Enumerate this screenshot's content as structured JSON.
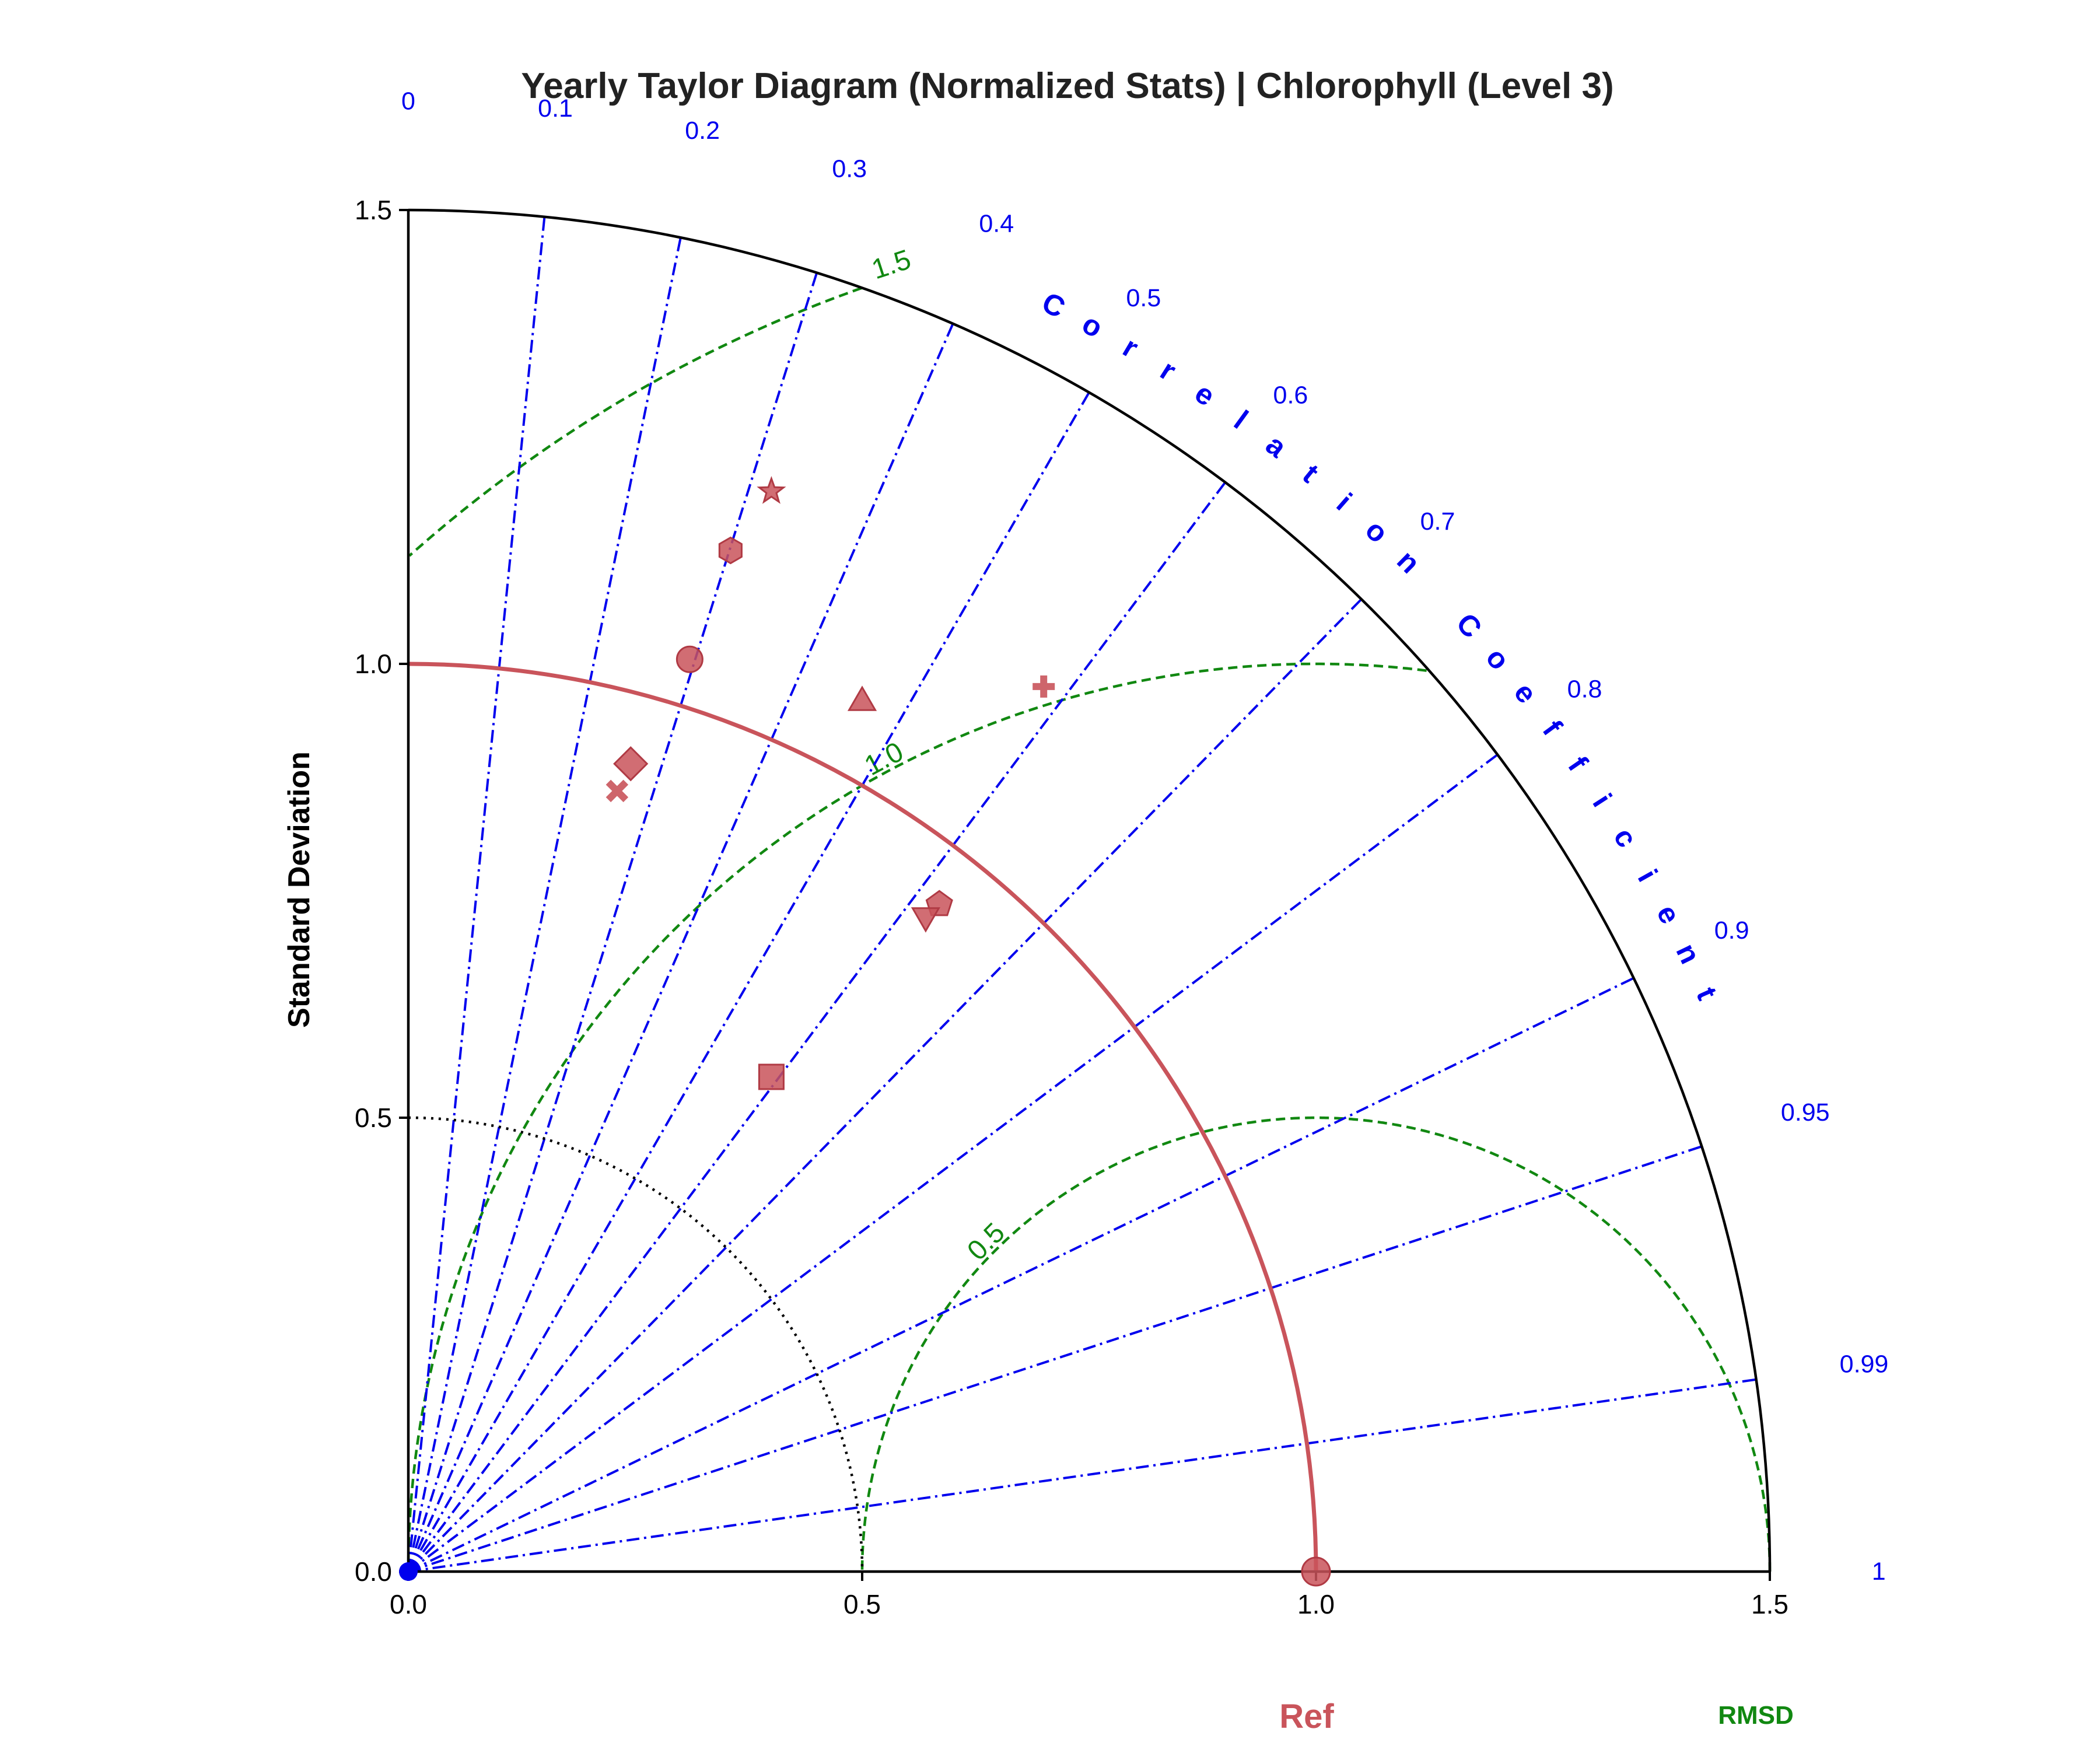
{
  "chart_data": {
    "type": "taylor",
    "title": "Yearly Taylor Diagram (Normalized Stats) | Chlorophyll (Level 3)",
    "ylabel": "Standard Deviation",
    "std_range": [
      0,
      1.5
    ],
    "std_ticks": [
      "0.0",
      "0.5",
      "1.0",
      "1.5"
    ],
    "correlation_title": "Correlation Coefficient",
    "correlation_ticks": [
      "0",
      "0.1",
      "0.2",
      "0.3",
      "0.4",
      "0.5",
      "0.6",
      "0.7",
      "0.8",
      "0.9",
      "0.95",
      "0.99",
      "1"
    ],
    "rmsd_contours": [
      "0.5",
      "1.0",
      "1.5"
    ],
    "rmsd_title": "RMSD",
    "reference": {
      "label": "Ref",
      "std": 1.0,
      "corr": 1.0
    },
    "points": [
      {
        "marker": "star",
        "x": 0.4,
        "y": 1.19
      },
      {
        "marker": "hexagon",
        "x": 0.355,
        "y": 1.125
      },
      {
        "marker": "circle",
        "x": 0.31,
        "y": 1.005
      },
      {
        "marker": "plus",
        "x": 0.7,
        "y": 0.975
      },
      {
        "marker": "triangle-up",
        "x": 0.5,
        "y": 0.96
      },
      {
        "marker": "diamond",
        "x": 0.245,
        "y": 0.89
      },
      {
        "marker": "x",
        "x": 0.23,
        "y": 0.86
      },
      {
        "marker": "pentagon",
        "x": 0.585,
        "y": 0.735
      },
      {
        "marker": "triangle-down",
        "x": 0.57,
        "y": 0.72
      },
      {
        "marker": "square",
        "x": 0.4,
        "y": 0.545
      }
    ],
    "colors": {
      "points": "#c9545b",
      "reference": "#c9545b",
      "correlation": "#0000ee",
      "rmsd": "#118811",
      "axes": "#000000"
    }
  }
}
